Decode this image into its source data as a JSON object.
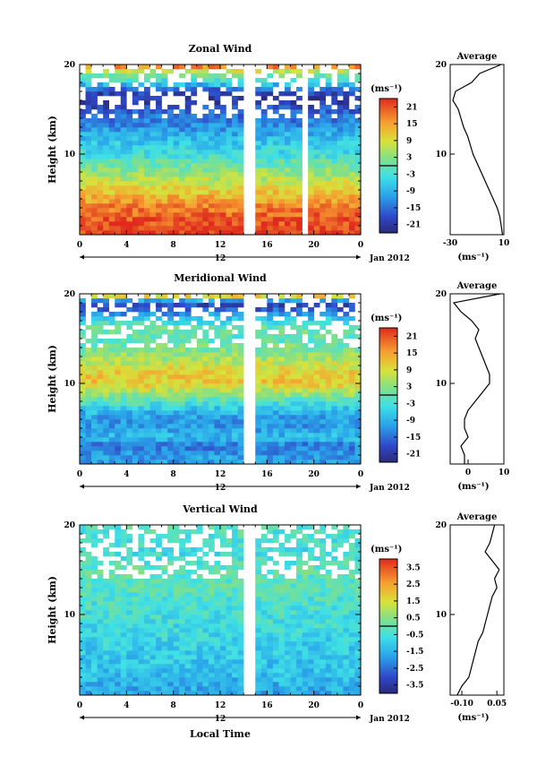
{
  "figure": {
    "xlabel": "Local Time",
    "date_label": "Jan 2012",
    "colorbar_unit": "(ms⁻¹)",
    "average_title": "Average",
    "average_unit": "(ms⁻¹)",
    "y_label": "Height (km)"
  },
  "chart_data": [
    {
      "type": "heatmap",
      "title": "Zonal Wind",
      "ylabel": "Height (km)",
      "x_ticks": [
        "0",
        "4",
        "8",
        "12",
        "16",
        "20",
        "0"
      ],
      "x_range_hours": [
        0,
        24
      ],
      "day_label": "12",
      "y_ticks": [
        "10",
        "20"
      ],
      "ylim": [
        1,
        20
      ],
      "colorbar_ticks": [
        "21",
        "15",
        "9",
        "3",
        "-3",
        "-9",
        "-15",
        "-21"
      ],
      "colorbar_range": [
        -24,
        24
      ],
      "colormap": "blue-cyan-green-yellow-red",
      "data_gaps_hours": [
        [
          14.2,
          14.8
        ],
        [
          19.2,
          19.6
        ]
      ],
      "profile": {
        "title": "Average",
        "xticks": [
          "-30",
          "10"
        ],
        "xlim": [
          -30,
          10
        ],
        "height_km": [
          1,
          2,
          3,
          4,
          5,
          6,
          7,
          8,
          9,
          10,
          11,
          12,
          13,
          14,
          15,
          16,
          17,
          18,
          19,
          20
        ],
        "value": [
          9,
          8,
          7,
          5,
          2,
          -1,
          -4,
          -7,
          -10,
          -13,
          -15,
          -17,
          -20,
          -22,
          -24,
          -28,
          -26,
          -14,
          -8,
          8
        ]
      }
    },
    {
      "type": "heatmap",
      "title": "Meridional Wind",
      "ylabel": "Height (km)",
      "x_ticks": [
        "0",
        "4",
        "8",
        "12",
        "16",
        "20",
        "0"
      ],
      "x_range_hours": [
        0,
        24
      ],
      "day_label": "12",
      "y_ticks": [
        "10",
        "20"
      ],
      "ylim": [
        1,
        20
      ],
      "colorbar_ticks": [
        "21",
        "15",
        "9",
        "3",
        "-3",
        "-9",
        "-15",
        "-21"
      ],
      "colorbar_range": [
        -24,
        24
      ],
      "colormap": "blue-cyan-green-yellow-red",
      "data_gaps_hours": [
        [
          14.2,
          14.8
        ]
      ],
      "profile": {
        "title": "Average",
        "xticks": [
          "0",
          "10"
        ],
        "xlim": [
          -5,
          10
        ],
        "height_km": [
          1,
          2,
          3,
          4,
          5,
          6,
          7,
          8,
          9,
          10,
          11,
          12,
          13,
          14,
          15,
          16,
          17,
          18,
          19,
          20
        ],
        "value": [
          -1,
          -1,
          -2,
          0,
          -1,
          -1,
          0,
          2,
          4,
          6,
          6,
          5,
          4,
          3,
          2,
          3,
          1,
          -2,
          -4,
          9
        ]
      }
    },
    {
      "type": "heatmap",
      "title": "Vertical Wind",
      "ylabel": "Height (km)",
      "x_ticks": [
        "0",
        "4",
        "8",
        "12",
        "16",
        "20",
        "0"
      ],
      "x_range_hours": [
        0,
        24
      ],
      "day_label": "12",
      "y_ticks": [
        "10",
        "20"
      ],
      "ylim": [
        1,
        20
      ],
      "colorbar_ticks": [
        "3.5",
        "2.5",
        "1.5",
        "0.5",
        "-0.5",
        "-1.5",
        "-2.5",
        "-3.5"
      ],
      "colorbar_range": [
        -4,
        4
      ],
      "colormap": "blue-cyan-green-yellow-red",
      "data_gaps_hours": [
        [
          14.2,
          14.8
        ]
      ],
      "profile": {
        "title": "Average",
        "xticks": [
          "-0.10",
          "0.05"
        ],
        "xlim": [
          -0.15,
          0.08
        ],
        "height_km": [
          1,
          2,
          3,
          4,
          5,
          6,
          7,
          8,
          9,
          10,
          11,
          12,
          13,
          14,
          15,
          16,
          17,
          18,
          19,
          20
        ],
        "value": [
          -0.12,
          -0.1,
          -0.07,
          -0.06,
          -0.05,
          -0.04,
          -0.03,
          -0.01,
          0.0,
          0.01,
          0.02,
          0.03,
          0.05,
          0.04,
          0.06,
          0.03,
          0.0,
          0.02,
          0.03,
          0.04
        ]
      }
    }
  ]
}
